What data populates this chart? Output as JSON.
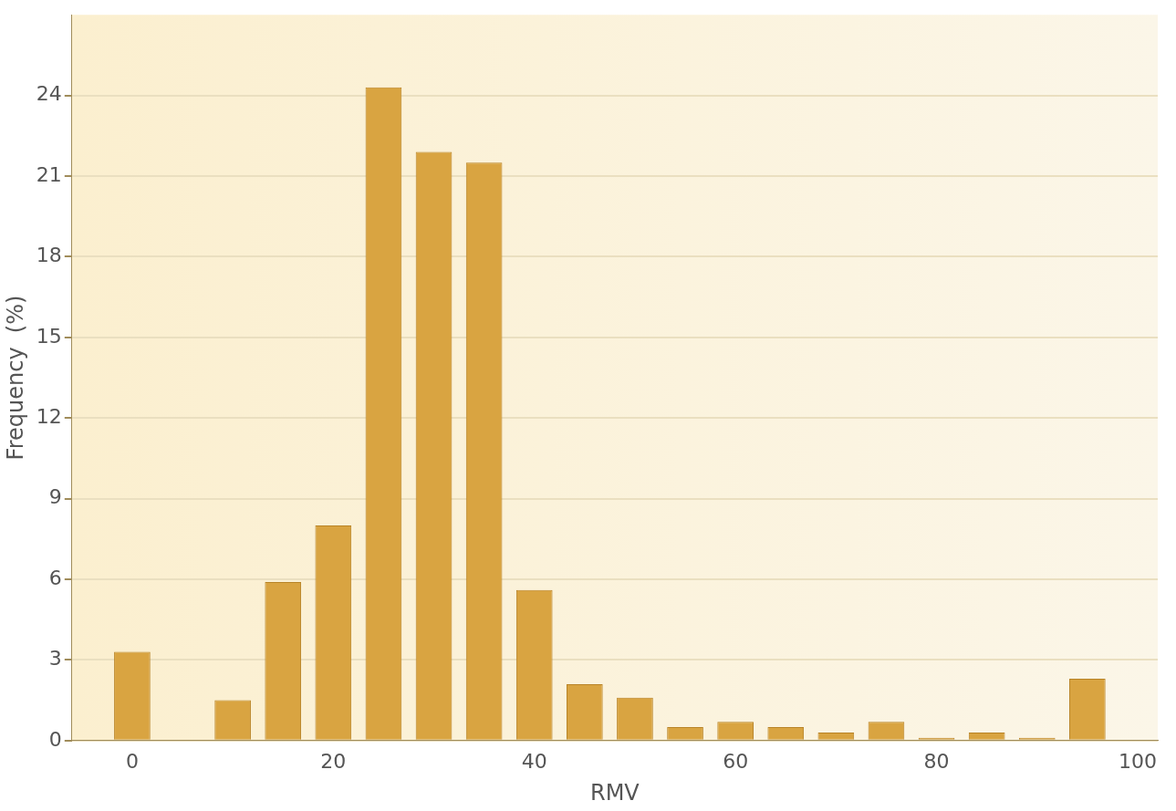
{
  "chart_data": {
    "type": "bar",
    "xlabel": "RMV",
    "ylabel": "Frequency  (%)",
    "x": [
      0,
      10,
      15,
      20,
      25,
      30,
      35,
      40,
      45,
      50,
      55,
      60,
      65,
      70,
      75,
      80,
      85,
      90,
      95
    ],
    "values": [
      3.3,
      1.5,
      5.9,
      8.0,
      24.3,
      21.9,
      21.5,
      5.6,
      2.1,
      1.6,
      0.5,
      0.7,
      0.5,
      0.3,
      0.7,
      0.1,
      0.3,
      0.1,
      2.3
    ],
    "color": "#d9a441",
    "xlim": [
      -6,
      102
    ],
    "xticks": [
      0,
      20,
      40,
      60,
      80,
      100
    ],
    "ylim": [
      0,
      27
    ],
    "yticks": [
      0,
      3,
      6,
      9,
      12,
      15,
      18,
      21,
      24
    ],
    "grid": "y",
    "legend": false
  }
}
